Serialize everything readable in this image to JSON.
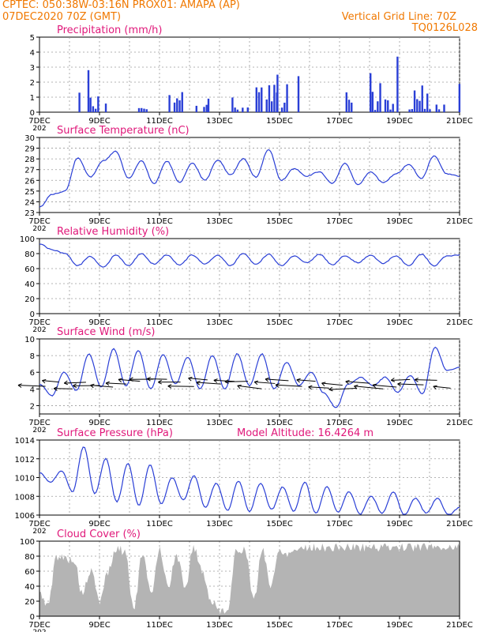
{
  "header": {
    "line1_left": "CPTEC:  050:38W-03:16N  PROX01: AMAPA (AP)",
    "line2_left": "07DEC2020 70Z (GMT)",
    "line2_right": "Vertical Grid Line: 70Z",
    "line3_right": "TQ0126L028"
  },
  "colors": {
    "header": "#f07800",
    "title": "#e0187a",
    "series": "#2a3fd6",
    "cloud": "#b4b4b4",
    "grid": "#9a9a9a"
  },
  "chart_data": [
    {
      "type": "bar",
      "title": "Precipitation (mm/h)",
      "ylim": [
        0,
        5
      ],
      "yticks": [
        "0",
        "1",
        "2",
        "3",
        "4",
        "5"
      ],
      "x_tick_labels": [
        "7DEC",
        "9DEC",
        "11DEC",
        "13DEC",
        "15DEC",
        "17DEC",
        "19DEC",
        "21DEC"
      ],
      "x_first_label_extra": "202",
      "peaks": [
        {
          "x": 8.6,
          "y": 2.8
        },
        {
          "x": 8.3,
          "y": 1.3
        },
        {
          "x": 12.6,
          "y": 0.9
        },
        {
          "x": 14.9,
          "y": 2.5
        },
        {
          "x": 15.6,
          "y": 2.4
        },
        {
          "x": 18.9,
          "y": 3.7
        },
        {
          "x": 18.0,
          "y": 2.6
        }
      ]
    },
    {
      "type": "line",
      "title": "Surface Temperature (nC)",
      "ylim": [
        23,
        30
      ],
      "yticks": [
        "23",
        "24",
        "25",
        "26",
        "27",
        "28",
        "29",
        "30"
      ],
      "x_tick_labels": [
        "7DEC",
        "9DEC",
        "11DEC",
        "13DEC",
        "15DEC",
        "17DEC",
        "19DEC",
        "21DEC"
      ],
      "x_first_label_extra": "202",
      "series": [
        {
          "values": [
            23.5,
            24.7,
            25.0,
            28.1,
            26.3,
            27.8,
            28.7,
            26.2,
            27.8,
            25.7,
            27.8,
            25.8,
            27.6,
            26.0,
            27.9,
            26.5,
            28.0,
            26.3,
            28.9,
            26.0,
            27.1,
            26.4,
            26.8,
            25.7,
            27.6,
            25.6,
            26.8,
            25.8,
            26.6,
            27.5,
            26.2,
            28.3,
            26.6,
            26.4
          ]
        }
      ]
    },
    {
      "type": "line",
      "title": "Relative Humidity (%)",
      "ylim": [
        0,
        100
      ],
      "yticks": [
        "0",
        "20",
        "40",
        "60",
        "80",
        "100"
      ],
      "x_tick_labels": [
        "7DEC",
        "9DEC",
        "11DEC",
        "13DEC",
        "15DEC",
        "17DEC",
        "19DEC",
        "21DEC"
      ],
      "x_first_label_extra": "202",
      "series": [
        {
          "values": [
            93,
            85,
            80,
            64,
            76,
            62,
            78,
            64,
            80,
            66,
            78,
            65,
            78,
            66,
            78,
            64,
            80,
            66,
            79,
            64,
            77,
            68,
            79,
            65,
            77,
            68,
            78,
            67,
            77,
            64,
            79,
            64,
            77,
            78
          ]
        }
      ]
    },
    {
      "type": "line",
      "title": "Surface Wind (m/s)",
      "ylim": [
        1,
        10
      ],
      "yticks": [
        "2",
        "4",
        "6",
        "8",
        "10"
      ],
      "x_tick_labels": [
        "7DEC",
        "9DEC",
        "11DEC",
        "13DEC",
        "15DEC",
        "17DEC",
        "19DEC",
        "21DEC"
      ],
      "x_first_label_extra": "202",
      "series": [
        {
          "values": [
            4.6,
            3.2,
            6.0,
            3.8,
            8.2,
            4.2,
            8.8,
            4.4,
            8.6,
            4.0,
            8.1,
            4.6,
            7.8,
            4.0,
            8.0,
            4.0,
            8.2,
            4.4,
            8.2,
            4.0,
            7.2,
            4.4,
            6.0,
            3.5,
            1.8,
            4.6,
            5.4,
            4.4,
            5.4,
            3.6,
            5.6,
            3.4,
            9.0,
            6.2,
            6.6
          ]
        }
      ],
      "arrows_note": "wind direction vectors"
    },
    {
      "type": "line",
      "title": "Surface Pressure (hPa)",
      "annotation": "Model Altitude: 16.4264 m",
      "ylim": [
        1006,
        1014
      ],
      "yticks": [
        "1006",
        "1008",
        "1010",
        "1012",
        "1014"
      ],
      "x_tick_labels": [
        "7DEC",
        "9DEC",
        "11DEC",
        "13DEC",
        "15DEC",
        "17DEC",
        "19DEC",
        "21DEC"
      ],
      "x_first_label_extra": "202",
      "series": [
        {
          "values": [
            1010.5,
            1009.5,
            1010.7,
            1008.5,
            1013.3,
            1008.3,
            1012.0,
            1007.4,
            1011.5,
            1007.0,
            1011.4,
            1007.2,
            1010.0,
            1007.6,
            1010.2,
            1006.8,
            1009.4,
            1006.5,
            1009.6,
            1006.4,
            1009.4,
            1006.6,
            1009.0,
            1006.4,
            1009.5,
            1006.2,
            1009.0,
            1006.3,
            1008.5,
            1006.1,
            1008.0,
            1006.2,
            1008.5,
            1006.0,
            1007.8,
            1006.2,
            1007.8,
            1006.0,
            1006.8
          ]
        }
      ]
    },
    {
      "type": "area",
      "title": "Cloud Cover (%)",
      "ylim": [
        0,
        100
      ],
      "yticks": [
        "0",
        "20",
        "40",
        "60",
        "80",
        "100"
      ],
      "x_tick_labels": [
        "7DEC",
        "9DEC",
        "11DEC",
        "13DEC",
        "15DEC",
        "17DEC",
        "19DEC",
        "21DEC"
      ],
      "x_first_label_extra": "202",
      "series": [
        {
          "values": [
            30,
            15,
            80,
            77,
            75,
            30,
            60,
            20,
            60,
            90,
            86,
            10,
            82,
            30,
            90,
            40,
            80,
            40,
            92,
            60,
            20,
            8,
            10,
            90,
            88,
            20,
            90,
            40,
            88,
            84,
            90,
            92,
            92,
            92,
            90,
            92,
            92,
            92,
            92,
            92,
            92,
            93,
            92,
            92,
            92,
            93,
            93,
            92,
            92,
            93
          ]
        }
      ]
    }
  ]
}
